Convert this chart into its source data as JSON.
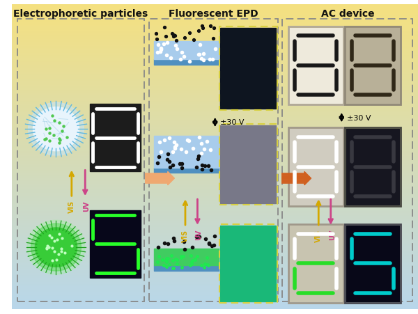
{
  "section_titles": [
    "Electrophoretic particles",
    "Fluorescent EPD",
    "AC device"
  ],
  "section_title_fontsize": 10,
  "vis_color": "#d4a800",
  "uv_color": "#cc4488",
  "voltage_text": "±30 V",
  "arrow1_color": "#f0a878",
  "arrow2_color": "#d06820",
  "bg_yellow": [
    0.96,
    0.88,
    0.5
  ],
  "bg_blue": [
    0.72,
    0.84,
    0.92
  ]
}
